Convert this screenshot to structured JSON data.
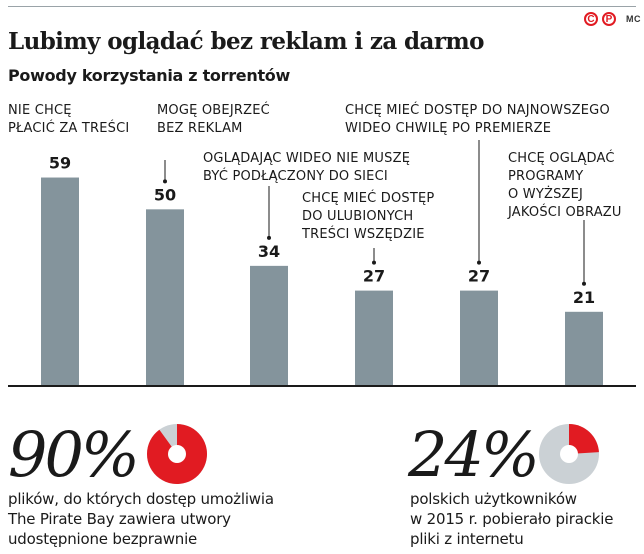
{
  "header": {
    "title": "Lubimy oglądać bez reklam i za darmo",
    "subtitle": "Powody korzystania z torrentów",
    "logo_letters": [
      "C",
      "P"
    ],
    "logo_credit": "MC"
  },
  "colors": {
    "bar": "#84949c",
    "accent": "#e11b22",
    "donut_rest": "#cbd1d5",
    "text": "#1a1a1a"
  },
  "chart_data": {
    "type": "bar",
    "categories": [
      "NIE CHCĘ PŁACIĆ ZA TREŚCI",
      "MOGĘ OBEJRZEĆ BEZ REKLAM",
      "OGLĄDAJĄC WIDEO NIE MUSZĘ BYĆ PODŁĄCZONY DO SIECI",
      "CHCĘ MIEĆ DOSTĘP DO ULUBIONYCH TREŚCI WSZĘDZIE",
      "CHCĘ MIEĆ DOSTĘP DO NAJNOWSZEGO WIDEO CHWILĘ PO PREMIERZE",
      "CHCĘ OGLĄDAĆ PROGRAMY O WYŻSZEJ JAKOŚCI OBRAZU"
    ],
    "category_lines": [
      [
        "NIE CHCĘ",
        "PŁACIĆ ZA TREŚCI"
      ],
      [
        "MOGĘ OBEJRZEĆ",
        "BEZ REKLAM"
      ],
      [
        "OGLĄDAJĄC WIDEO NIE MUSZĘ",
        "BYĆ PODŁĄCZONY DO SIECI"
      ],
      [
        "CHCĘ MIEĆ DOSTĘP",
        "DO ULUBIONYCH",
        "TREŚCI WSZĘDZIE"
      ],
      [
        "CHCĘ MIEĆ DOSTĘP DO NAJNOWSZEGO",
        "WIDEO CHWILĘ PO PREMIERZE"
      ],
      [
        "CHCĘ OGLĄDAĆ",
        "PROGRAMY",
        "O WYŻSZEJ",
        "JAKOŚCI OBRAZU"
      ]
    ],
    "values": [
      59,
      50,
      34,
      27,
      27,
      21
    ],
    "ylim": [
      0,
      60
    ],
    "grid": false,
    "legend": "none"
  },
  "stats": [
    {
      "value": "90%",
      "fraction": 0.9,
      "description_lines": [
        "plików, do których dostęp umożliwia",
        "The Pirate Bay zawiera utwory",
        "udostępnione bezprawnie"
      ]
    },
    {
      "value": "24%",
      "fraction": 0.24,
      "description_lines": [
        "polskich użytkowników",
        "w 2015 r. pobierało pirackie",
        "pliki z internetu"
      ]
    }
  ]
}
